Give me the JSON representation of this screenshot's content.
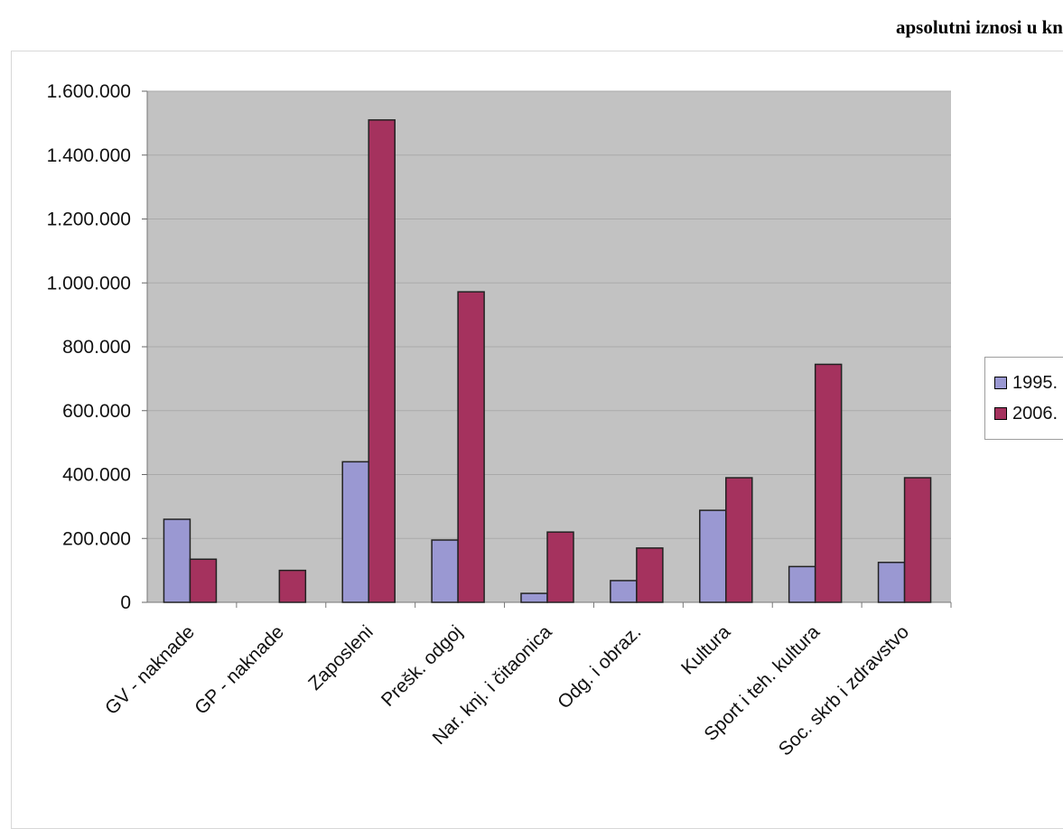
{
  "header": {
    "note": "apsolutni iznosi u kn"
  },
  "chart_data": {
    "type": "bar",
    "title": "",
    "xlabel": "",
    "ylabel": "",
    "ylim": [
      0,
      1600000
    ],
    "yticks": [
      0,
      200000,
      400000,
      600000,
      800000,
      1000000,
      1200000,
      1400000,
      1600000
    ],
    "ytick_labels": [
      "0",
      "200.000",
      "400.000",
      "600.000",
      "800.000",
      "1.000.000",
      "1.200.000",
      "1.400.000",
      "1.600.000"
    ],
    "grid": true,
    "legend_position": "right",
    "categories": [
      "GV - naknade",
      "GP - naknade",
      "Zaposleni",
      "Prešk. odgoj",
      "Nar. knj. i čitaonica",
      "Odg. i obraz.",
      "Kultura",
      "Sport i teh. kultura",
      "Soc. skrb i zdravstvo"
    ],
    "series": [
      {
        "name": "1995.",
        "color": "#9a98d2",
        "values": [
          260000,
          0,
          440000,
          195000,
          28000,
          68000,
          288000,
          112000,
          125000
        ]
      },
      {
        "name": "2006.",
        "color": "#a5325e",
        "values": [
          135000,
          100000,
          1510000,
          972000,
          220000,
          170000,
          390000,
          745000,
          390000
        ]
      }
    ],
    "plot_background": "#c2c2c2"
  }
}
